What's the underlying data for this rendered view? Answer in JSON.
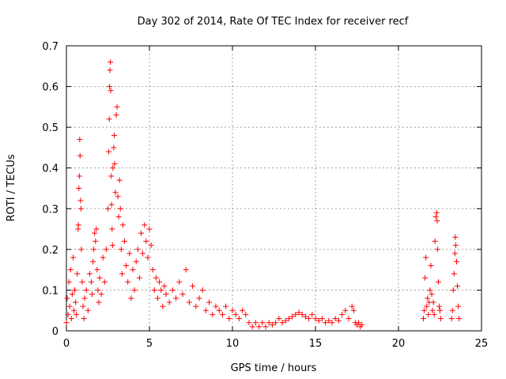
{
  "chart_data": {
    "type": "scatter",
    "title": "Day 302 of 2014, Rate Of TEC Index for receiver recf",
    "xlabel": "GPS time / hours",
    "ylabel": "ROTI / TECUs",
    "xlim": [
      0,
      25
    ],
    "ylim": [
      0,
      0.7
    ],
    "xticks": [
      0,
      5,
      10,
      15,
      20,
      25
    ],
    "xtick_labels": [
      "0",
      "5",
      "10",
      "15",
      "20",
      "25"
    ],
    "yticks": [
      0,
      0.1,
      0.2,
      0.3,
      0.4,
      0.5,
      0.6,
      0.7
    ],
    "ytick_labels": [
      "0",
      "0.1",
      "0.2",
      "0.3",
      "0.4",
      "0.5",
      "0.6",
      "0.7"
    ],
    "grid": true,
    "marker": "+",
    "marker_color": "#ff0000",
    "series": [
      {
        "points": [
          [
            0.0,
            0.02
          ],
          [
            0.05,
            0.08
          ],
          [
            0.1,
            0.04
          ],
          [
            0.15,
            0.12
          ],
          [
            0.2,
            0.06
          ],
          [
            0.25,
            0.15
          ],
          [
            0.3,
            0.03
          ],
          [
            0.35,
            0.09
          ],
          [
            0.4,
            0.18
          ],
          [
            0.45,
            0.05
          ],
          [
            0.5,
            0.1
          ],
          [
            0.55,
            0.07
          ],
          [
            0.6,
            0.04
          ],
          [
            0.65,
            0.14
          ],
          [
            0.7,
            0.25
          ],
          [
            0.72,
            0.26
          ],
          [
            0.75,
            0.35
          ],
          [
            0.78,
            0.38
          ],
          [
            0.8,
            0.47
          ],
          [
            0.82,
            0.43
          ],
          [
            0.85,
            0.32
          ],
          [
            0.88,
            0.3
          ],
          [
            0.9,
            0.2
          ],
          [
            0.95,
            0.12
          ],
          [
            1.0,
            0.06
          ],
          [
            1.05,
            0.03
          ],
          [
            1.1,
            0.08
          ],
          [
            1.2,
            0.1
          ],
          [
            1.3,
            0.05
          ],
          [
            1.4,
            0.14
          ],
          [
            1.5,
            0.12
          ],
          [
            1.55,
            0.09
          ],
          [
            1.6,
            0.17
          ],
          [
            1.65,
            0.2
          ],
          [
            1.7,
            0.24
          ],
          [
            1.75,
            0.22
          ],
          [
            1.8,
            0.25
          ],
          [
            1.85,
            0.15
          ],
          [
            1.9,
            0.1
          ],
          [
            1.95,
            0.07
          ],
          [
            2.0,
            0.13
          ],
          [
            2.1,
            0.09
          ],
          [
            2.2,
            0.18
          ],
          [
            2.3,
            0.12
          ],
          [
            2.4,
            0.2
          ],
          [
            2.5,
            0.3
          ],
          [
            2.55,
            0.44
          ],
          [
            2.58,
            0.52
          ],
          [
            2.6,
            0.6
          ],
          [
            2.62,
            0.64
          ],
          [
            2.65,
            0.66
          ],
          [
            2.67,
            0.59
          ],
          [
            2.7,
            0.38
          ],
          [
            2.72,
            0.31
          ],
          [
            2.75,
            0.25
          ],
          [
            2.78,
            0.21
          ],
          [
            2.8,
            0.4
          ],
          [
            2.85,
            0.45
          ],
          [
            2.88,
            0.48
          ],
          [
            2.9,
            0.41
          ],
          [
            2.95,
            0.34
          ],
          [
            3.0,
            0.53
          ],
          [
            3.05,
            0.55
          ],
          [
            3.1,
            0.33
          ],
          [
            3.15,
            0.28
          ],
          [
            3.2,
            0.37
          ],
          [
            3.25,
            0.3
          ],
          [
            3.3,
            0.2
          ],
          [
            3.35,
            0.14
          ],
          [
            3.4,
            0.26
          ],
          [
            3.5,
            0.22
          ],
          [
            3.6,
            0.16
          ],
          [
            3.7,
            0.12
          ],
          [
            3.8,
            0.19
          ],
          [
            3.9,
            0.08
          ],
          [
            4.0,
            0.15
          ],
          [
            4.1,
            0.1
          ],
          [
            4.2,
            0.17
          ],
          [
            4.3,
            0.2
          ],
          [
            4.4,
            0.13
          ],
          [
            4.5,
            0.24
          ],
          [
            4.6,
            0.19
          ],
          [
            4.7,
            0.26
          ],
          [
            4.8,
            0.22
          ],
          [
            4.9,
            0.18
          ],
          [
            5.0,
            0.25
          ],
          [
            5.1,
            0.21
          ],
          [
            5.2,
            0.15
          ],
          [
            5.3,
            0.1
          ],
          [
            5.4,
            0.13
          ],
          [
            5.5,
            0.08
          ],
          [
            5.6,
            0.12
          ],
          [
            5.7,
            0.1
          ],
          [
            5.8,
            0.06
          ],
          [
            5.9,
            0.11
          ],
          [
            6.0,
            0.09
          ],
          [
            6.2,
            0.07
          ],
          [
            6.4,
            0.1
          ],
          [
            6.6,
            0.08
          ],
          [
            6.8,
            0.12
          ],
          [
            7.0,
            0.09
          ],
          [
            7.2,
            0.15
          ],
          [
            7.4,
            0.07
          ],
          [
            7.6,
            0.11
          ],
          [
            7.8,
            0.06
          ],
          [
            8.0,
            0.08
          ],
          [
            8.2,
            0.1
          ],
          [
            8.4,
            0.05
          ],
          [
            8.6,
            0.07
          ],
          [
            8.8,
            0.04
          ],
          [
            9.0,
            0.06
          ],
          [
            9.2,
            0.05
          ],
          [
            9.4,
            0.04
          ],
          [
            9.6,
            0.06
          ],
          [
            9.8,
            0.03
          ],
          [
            10.0,
            0.05
          ],
          [
            10.2,
            0.04
          ],
          [
            10.4,
            0.03
          ],
          [
            10.6,
            0.05
          ],
          [
            10.8,
            0.04
          ],
          [
            11.0,
            0.02
          ],
          [
            11.2,
            0.01
          ],
          [
            11.4,
            0.02
          ],
          [
            11.6,
            0.01
          ],
          [
            11.8,
            0.02
          ],
          [
            12.0,
            0.01
          ],
          [
            12.2,
            0.02
          ],
          [
            12.4,
            0.015
          ],
          [
            12.6,
            0.02
          ],
          [
            12.8,
            0.03
          ],
          [
            13.0,
            0.02
          ],
          [
            13.2,
            0.025
          ],
          [
            13.4,
            0.03
          ],
          [
            13.6,
            0.035
          ],
          [
            13.8,
            0.04
          ],
          [
            14.0,
            0.045
          ],
          [
            14.2,
            0.04
          ],
          [
            14.4,
            0.035
          ],
          [
            14.6,
            0.03
          ],
          [
            14.8,
            0.04
          ],
          [
            15.0,
            0.03
          ],
          [
            15.2,
            0.025
          ],
          [
            15.4,
            0.03
          ],
          [
            15.6,
            0.02
          ],
          [
            15.8,
            0.025
          ],
          [
            16.0,
            0.02
          ],
          [
            16.2,
            0.03
          ],
          [
            16.4,
            0.025
          ],
          [
            16.6,
            0.04
          ],
          [
            16.8,
            0.05
          ],
          [
            17.0,
            0.03
          ],
          [
            17.2,
            0.06
          ],
          [
            17.3,
            0.05
          ],
          [
            17.4,
            0.02
          ],
          [
            17.5,
            0.015
          ],
          [
            17.6,
            0.02
          ],
          [
            17.7,
            0.01
          ],
          [
            17.8,
            0.015
          ],
          [
            21.5,
            0.03
          ],
          [
            21.55,
            0.05
          ],
          [
            21.6,
            0.13
          ],
          [
            21.65,
            0.18
          ],
          [
            21.7,
            0.06
          ],
          [
            21.75,
            0.08
          ],
          [
            21.8,
            0.04
          ],
          [
            21.85,
            0.07
          ],
          [
            21.9,
            0.1
          ],
          [
            21.95,
            0.16
          ],
          [
            22.0,
            0.09
          ],
          [
            22.05,
            0.05
          ],
          [
            22.1,
            0.07
          ],
          [
            22.15,
            0.04
          ],
          [
            22.2,
            0.22
          ],
          [
            22.25,
            0.28
          ],
          [
            22.3,
            0.29
          ],
          [
            22.33,
            0.27
          ],
          [
            22.35,
            0.2
          ],
          [
            22.4,
            0.12
          ],
          [
            22.45,
            0.06
          ],
          [
            22.5,
            0.05
          ],
          [
            22.55,
            0.03
          ],
          [
            23.2,
            0.03
          ],
          [
            23.25,
            0.05
          ],
          [
            23.3,
            0.1
          ],
          [
            23.35,
            0.14
          ],
          [
            23.4,
            0.19
          ],
          [
            23.42,
            0.23
          ],
          [
            23.45,
            0.21
          ],
          [
            23.5,
            0.17
          ],
          [
            23.55,
            0.11
          ],
          [
            23.6,
            0.06
          ],
          [
            23.65,
            0.03
          ]
        ]
      }
    ]
  }
}
